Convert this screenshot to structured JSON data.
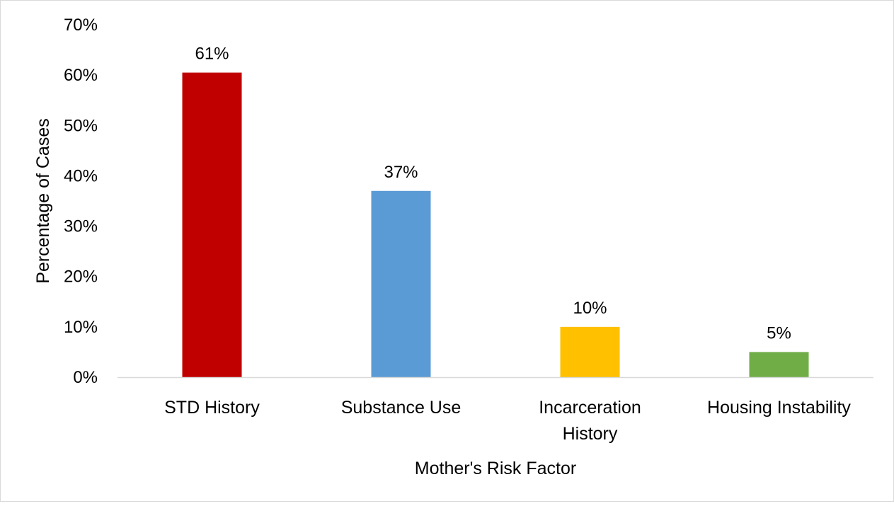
{
  "chart_data": {
    "type": "bar",
    "title": "",
    "xlabel": "Mother's Risk Factor",
    "ylabel": "Percentage of Cases",
    "ylim": [
      0,
      70
    ],
    "yticks": [
      0,
      10,
      20,
      30,
      40,
      50,
      60,
      70
    ],
    "ytick_labels": [
      "0%",
      "10%",
      "20%",
      "30%",
      "40%",
      "50%",
      "60%",
      "70%"
    ],
    "categories": [
      [
        "STD History"
      ],
      [
        "Substance Use"
      ],
      [
        "Incarceration",
        "History"
      ],
      [
        "Housing Instability"
      ]
    ],
    "values": [
      60.5,
      37,
      10,
      5
    ],
    "data_labels": [
      "61%",
      "37%",
      "10%",
      "5%"
    ],
    "colors": [
      "#c00000",
      "#5b9bd5",
      "#ffc000",
      "#70ad47"
    ],
    "grid": false,
    "legend": "none"
  }
}
